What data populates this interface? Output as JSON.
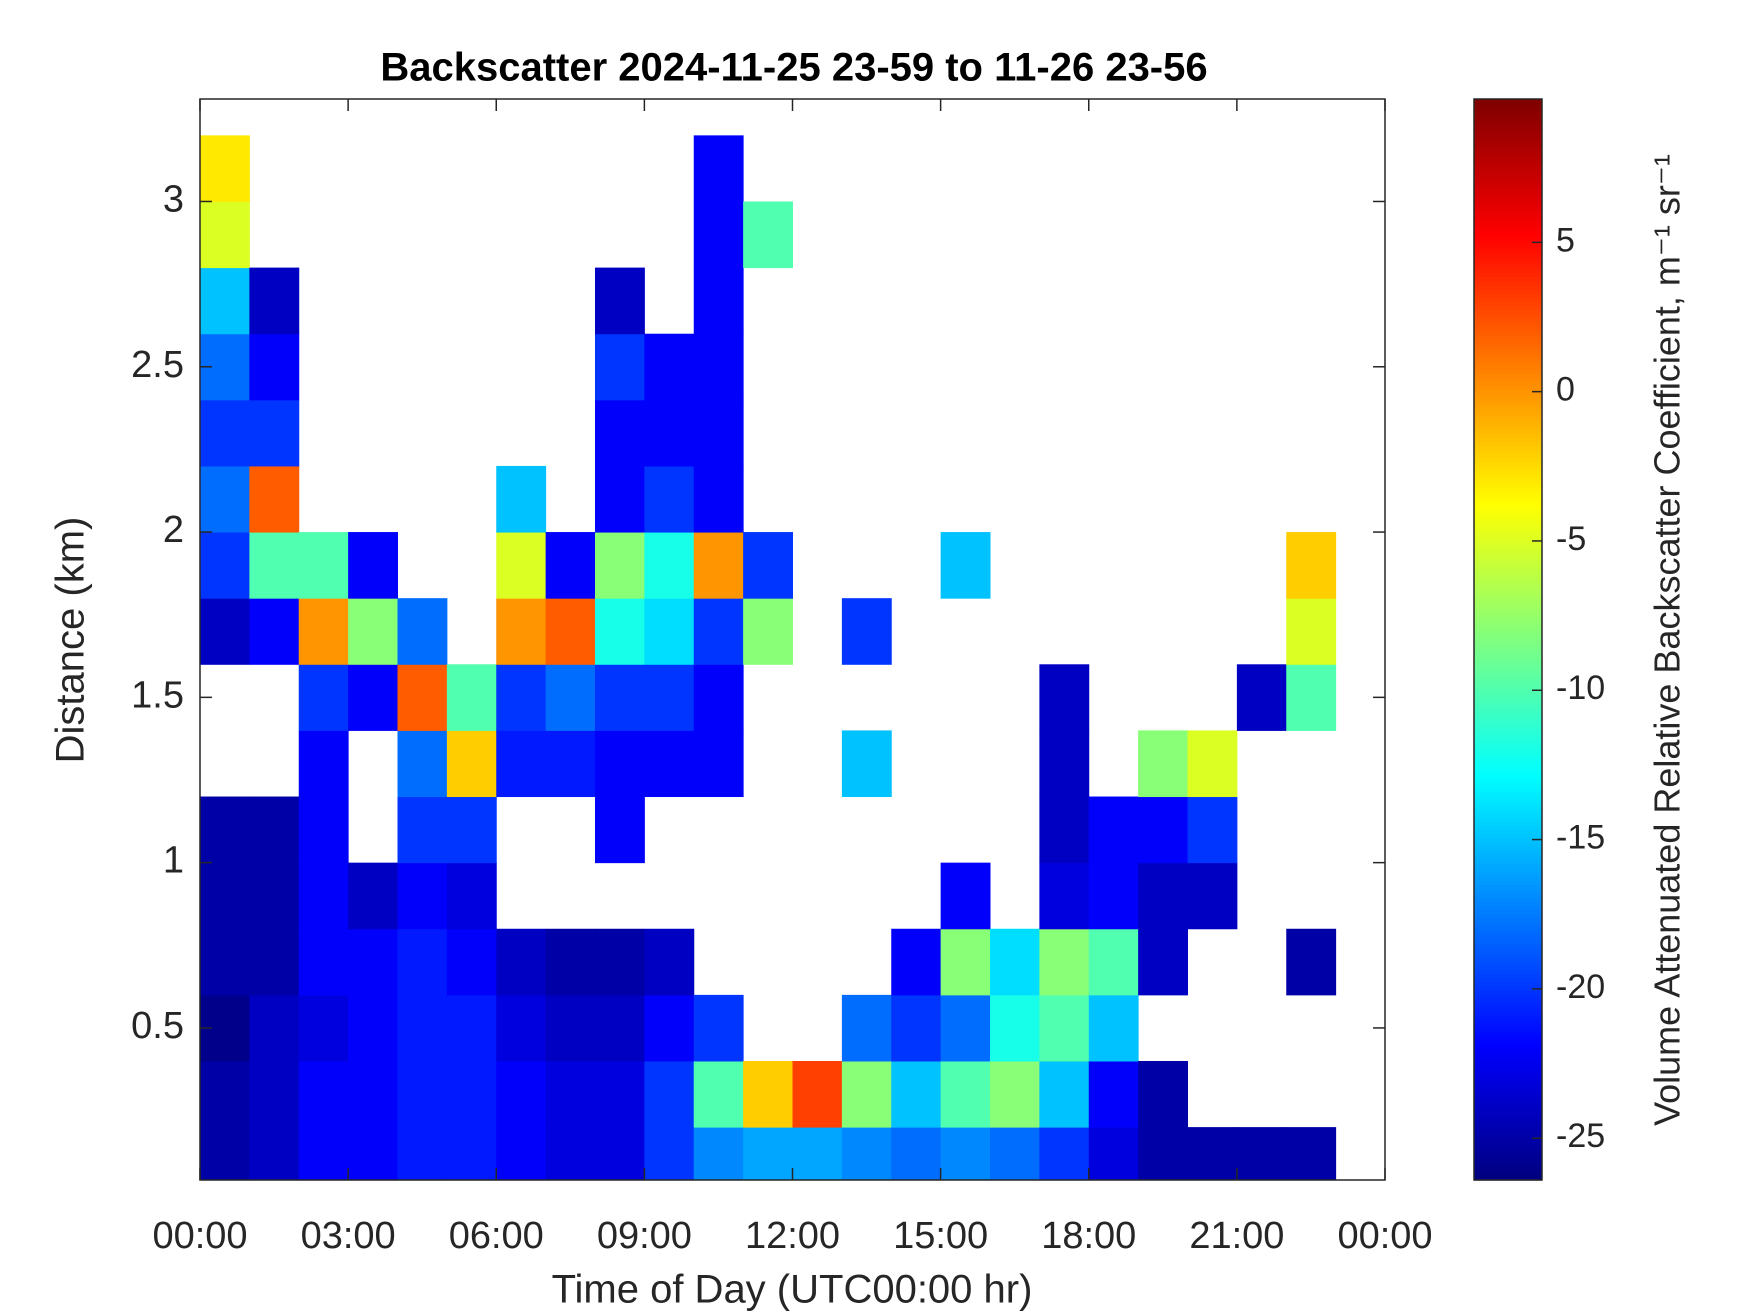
{
  "chart_data": {
    "type": "heatmap",
    "title": "Backscatter 2024-11-25 23-59 to 11-26 23-56",
    "x_label": "Time of Day (UTC00:00 hr)",
    "y_label": "Distance (km)",
    "colorbar_label": "Volume Attenuated Relative Backscatter Coefficient, m⁻¹ sr⁻¹",
    "colormap": "jet",
    "xlim": [
      0,
      24
    ],
    "xticks": [
      {
        "value": 0,
        "label": "00:00"
      },
      {
        "value": 3,
        "label": "03:00"
      },
      {
        "value": 6,
        "label": "06:00"
      },
      {
        "value": 9,
        "label": "09:00"
      },
      {
        "value": 12,
        "label": "12:00"
      },
      {
        "value": 15,
        "label": "15:00"
      },
      {
        "value": 18,
        "label": "18:00"
      },
      {
        "value": 21,
        "label": "21:00"
      },
      {
        "value": 24,
        "label": "00:00"
      }
    ],
    "ylim": [
      0.04,
      3.31
    ],
    "yticks": [
      0.5,
      1,
      1.5,
      2,
      2.5,
      3
    ],
    "clim": [
      -26.4,
      9.8
    ],
    "cticks": [
      -25,
      -20,
      -15,
      -10,
      -5,
      0,
      5
    ],
    "x": [
      0.5,
      1.5,
      2.5,
      3.5,
      4.5,
      5.5,
      6.5,
      7.5,
      8.5,
      9.5,
      10.5,
      11.5,
      12.5,
      13.5,
      14.5,
      15.5,
      16.5,
      17.5,
      18.5,
      19.5,
      20.5,
      21.5,
      22.5,
      23.5
    ],
    "y": [
      0.1,
      0.3,
      0.5,
      0.7,
      0.9,
      1.1,
      1.3,
      1.5,
      1.7,
      1.9,
      2.1,
      2.3,
      2.5,
      2.7,
      2.9,
      3.1
    ],
    "z": [
      [
        -25,
        -25,
        -26,
        -25,
        -25,
        -25,
        null,
        null,
        -24,
        -20,
        -18,
        -20,
        -18,
        -15,
        -5,
        -3
      ],
      [
        -24,
        -24,
        -24,
        -25,
        -25,
        -25,
        null,
        null,
        -22,
        -10,
        2,
        -20,
        -22,
        -24,
        null,
        null
      ],
      [
        -22,
        -22,
        -23,
        -22,
        -22,
        -22,
        -22,
        -20,
        0,
        -10,
        null,
        null,
        null,
        null,
        null,
        null
      ],
      [
        -22,
        -22,
        -22,
        -22,
        -24,
        null,
        null,
        -22,
        -8,
        -22,
        null,
        null,
        null,
        null,
        null,
        null
      ],
      [
        -21,
        -21,
        -21,
        -21,
        -22,
        -20,
        -18,
        2,
        -18,
        null,
        null,
        null,
        null,
        null,
        null,
        null
      ],
      [
        -21,
        -21,
        -21,
        -22,
        -23,
        -20,
        -2,
        -10,
        null,
        null,
        null,
        null,
        null,
        null,
        null,
        null
      ],
      [
        -22,
        -22,
        -23,
        -24,
        null,
        null,
        -21,
        -20,
        0,
        -5,
        -15,
        null,
        null,
        null,
        null,
        null
      ],
      [
        -23,
        -23,
        -24,
        -25,
        null,
        null,
        -21,
        -18,
        2,
        -22,
        null,
        null,
        null,
        null,
        null,
        null
      ],
      [
        -23,
        -23,
        -24,
        -25,
        null,
        -22,
        -22,
        -20,
        -12,
        -8,
        -22,
        -22,
        -20,
        -24,
        null,
        null
      ],
      [
        -20,
        -20,
        -22,
        -24,
        null,
        null,
        -22,
        -20,
        -14,
        -12,
        -20,
        -22,
        -22,
        null,
        null,
        null
      ],
      [
        -17,
        -10,
        -20,
        null,
        null,
        null,
        -22,
        -22,
        -20,
        0,
        -22,
        -22,
        -22,
        -22,
        -22,
        -22
      ],
      [
        -16,
        -2,
        null,
        null,
        null,
        null,
        null,
        null,
        -8,
        -20,
        null,
        null,
        null,
        null,
        -10,
        null
      ],
      [
        -16,
        3,
        null,
        null,
        null,
        null,
        null,
        null,
        null,
        null,
        null,
        null,
        null,
        null,
        null,
        null
      ],
      [
        -17,
        -8,
        -18,
        null,
        null,
        null,
        -15,
        null,
        -20,
        null,
        null,
        null,
        null,
        null,
        null,
        null
      ],
      [
        -18,
        -15,
        -20,
        -22,
        null,
        null,
        null,
        null,
        null,
        null,
        null,
        null,
        null,
        null,
        null,
        null
      ],
      [
        -17,
        -10,
        -18,
        -8,
        -22,
        null,
        null,
        null,
        null,
        -15,
        null,
        null,
        null,
        null,
        null,
        null
      ],
      [
        -18,
        -8,
        -12,
        -14,
        null,
        null,
        null,
        null,
        null,
        null,
        null,
        null,
        null,
        null,
        null,
        null
      ],
      [
        -20,
        -15,
        -10,
        -8,
        -23,
        -24,
        -24,
        -24,
        null,
        null,
        null,
        null,
        null,
        null,
        null,
        null
      ],
      [
        -23,
        -22,
        -15,
        -10,
        -22,
        -22,
        null,
        null,
        null,
        null,
        null,
        null,
        null,
        null,
        null,
        null
      ],
      [
        -25,
        -25,
        null,
        -24,
        -24,
        -22,
        -8,
        null,
        null,
        null,
        null,
        null,
        null,
        null,
        null,
        null
      ],
      [
        -25,
        null,
        null,
        null,
        -24,
        -20,
        -5,
        null,
        null,
        null,
        null,
        null,
        null,
        null,
        null,
        null
      ],
      [
        -25,
        null,
        null,
        null,
        null,
        null,
        null,
        -24,
        null,
        null,
        null,
        null,
        null,
        null,
        null,
        null
      ],
      [
        -25,
        null,
        null,
        -25,
        null,
        null,
        null,
        -10,
        -5,
        -2,
        null,
        null,
        null,
        null,
        null,
        null
      ],
      [
        null,
        null,
        null,
        null,
        null,
        null,
        null,
        null,
        null,
        null,
        null,
        null,
        null,
        null,
        null,
        null
      ]
    ]
  }
}
